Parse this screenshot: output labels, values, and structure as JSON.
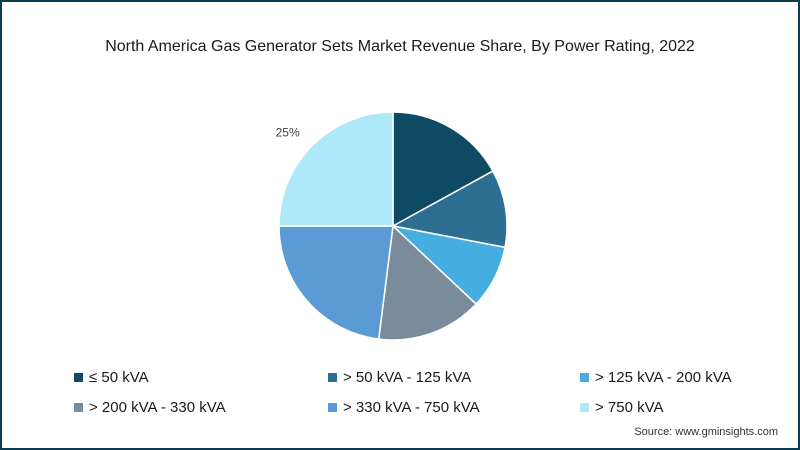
{
  "chart_data": {
    "type": "pie",
    "title": "North America Gas Generator Sets Market Revenue Share, By Power Rating, 2022",
    "categories": [
      "≤ 50 kVA",
      "> 50 kVA - 125 kVA",
      "> 125 kVA - 200 kVA",
      "> 200 kVA - 330 kVA",
      "> 330 kVA - 750 kVA",
      "> 750 kVA"
    ],
    "values": [
      17,
      11,
      9,
      15,
      23,
      25
    ],
    "colors": [
      "#0e4a63",
      "#2e6e90",
      "#45ade0",
      "#7a8b9c",
      "#5b9bd5",
      "#aee9f9"
    ],
    "data_labels": [
      "",
      "",
      "",
      "",
      "",
      "25%"
    ],
    "legend_position": "bottom"
  },
  "source": "Source: www.gminsights.com"
}
